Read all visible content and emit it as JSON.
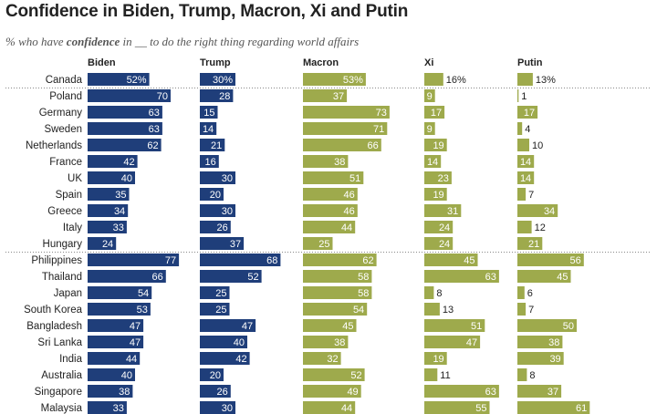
{
  "title": "Confidence in Biden, Trump, Macron, Xi and Putin",
  "subtitle": {
    "prefix": "% who have ",
    "emphasis": "confidence",
    "suffix": " in __ to do the right thing regarding world affairs"
  },
  "colors": {
    "biden": "#1f3e7a",
    "trump": "#1f3e7a",
    "macron": "#9eaa4c",
    "xi": "#9eaa4c",
    "putin": "#9eaa4c"
  },
  "chart_data": {
    "type": "bar",
    "orientation": "horizontal",
    "categories": [
      "Canada",
      "Poland",
      "Germany",
      "Sweden",
      "Netherlands",
      "France",
      "UK",
      "Spain",
      "Greece",
      "Italy",
      "Hungary",
      "Philippines",
      "Thailand",
      "Japan",
      "South Korea",
      "Bangladesh",
      "Sri Lanka",
      "India",
      "Australia",
      "Singapore",
      "Malaysia"
    ],
    "series": [
      {
        "name": "Biden",
        "values": [
          52,
          70,
          63,
          63,
          62,
          42,
          40,
          35,
          34,
          33,
          24,
          77,
          66,
          54,
          53,
          47,
          47,
          44,
          40,
          38,
          33
        ],
        "labels": [
          "52%",
          "70",
          "63",
          "63",
          "62",
          "42",
          "40",
          "35",
          "34",
          "33",
          "24",
          "77",
          "66",
          "54",
          "53",
          "47",
          "47",
          "44",
          "40",
          "38",
          "33"
        ]
      },
      {
        "name": "Trump",
        "values": [
          30,
          28,
          15,
          14,
          21,
          16,
          30,
          20,
          30,
          26,
          37,
          68,
          52,
          25,
          25,
          47,
          40,
          42,
          20,
          26,
          30
        ],
        "labels": [
          "30%",
          "28",
          "15",
          "14",
          "21",
          "16",
          "30",
          "20",
          "30",
          "26",
          "37",
          "68",
          "52",
          "25",
          "25",
          "47",
          "40",
          "42",
          "20",
          "26",
          "30"
        ]
      },
      {
        "name": "Macron",
        "values": [
          53,
          37,
          73,
          71,
          66,
          38,
          51,
          46,
          46,
          44,
          25,
          62,
          58,
          58,
          54,
          45,
          38,
          32,
          52,
          49,
          44
        ],
        "labels": [
          "53%",
          "37",
          "73",
          "71",
          "66",
          "38",
          "51",
          "46",
          "46",
          "44",
          "25",
          "62",
          "58",
          "58",
          "54",
          "45",
          "38",
          "32",
          "52",
          "49",
          "44"
        ]
      },
      {
        "name": "Xi",
        "values": [
          16,
          9,
          17,
          9,
          19,
          14,
          23,
          19,
          31,
          24,
          24,
          45,
          63,
          8,
          13,
          51,
          47,
          19,
          11,
          63,
          55
        ],
        "labels": [
          "16%",
          "9",
          "17",
          "9",
          "19",
          "14",
          "23",
          "19",
          "31",
          "24",
          "24",
          "45",
          "63",
          "8",
          "13",
          "51",
          "47",
          "19",
          "11",
          "63",
          "55"
        ]
      },
      {
        "name": "Putin",
        "values": [
          13,
          1,
          17,
          4,
          10,
          14,
          14,
          7,
          34,
          12,
          21,
          56,
          45,
          6,
          7,
          50,
          38,
          39,
          8,
          37,
          61
        ],
        "labels": [
          "13%",
          "1",
          "17",
          "4",
          "10",
          "14",
          "14",
          "7",
          "34",
          "12",
          "21",
          "56",
          "45",
          "6",
          "7",
          "50",
          "38",
          "39",
          "8",
          "37",
          "61"
        ]
      }
    ],
    "xlim": [
      0,
      100
    ],
    "group_separators_after": [
      "Canada",
      "Hungary"
    ]
  }
}
